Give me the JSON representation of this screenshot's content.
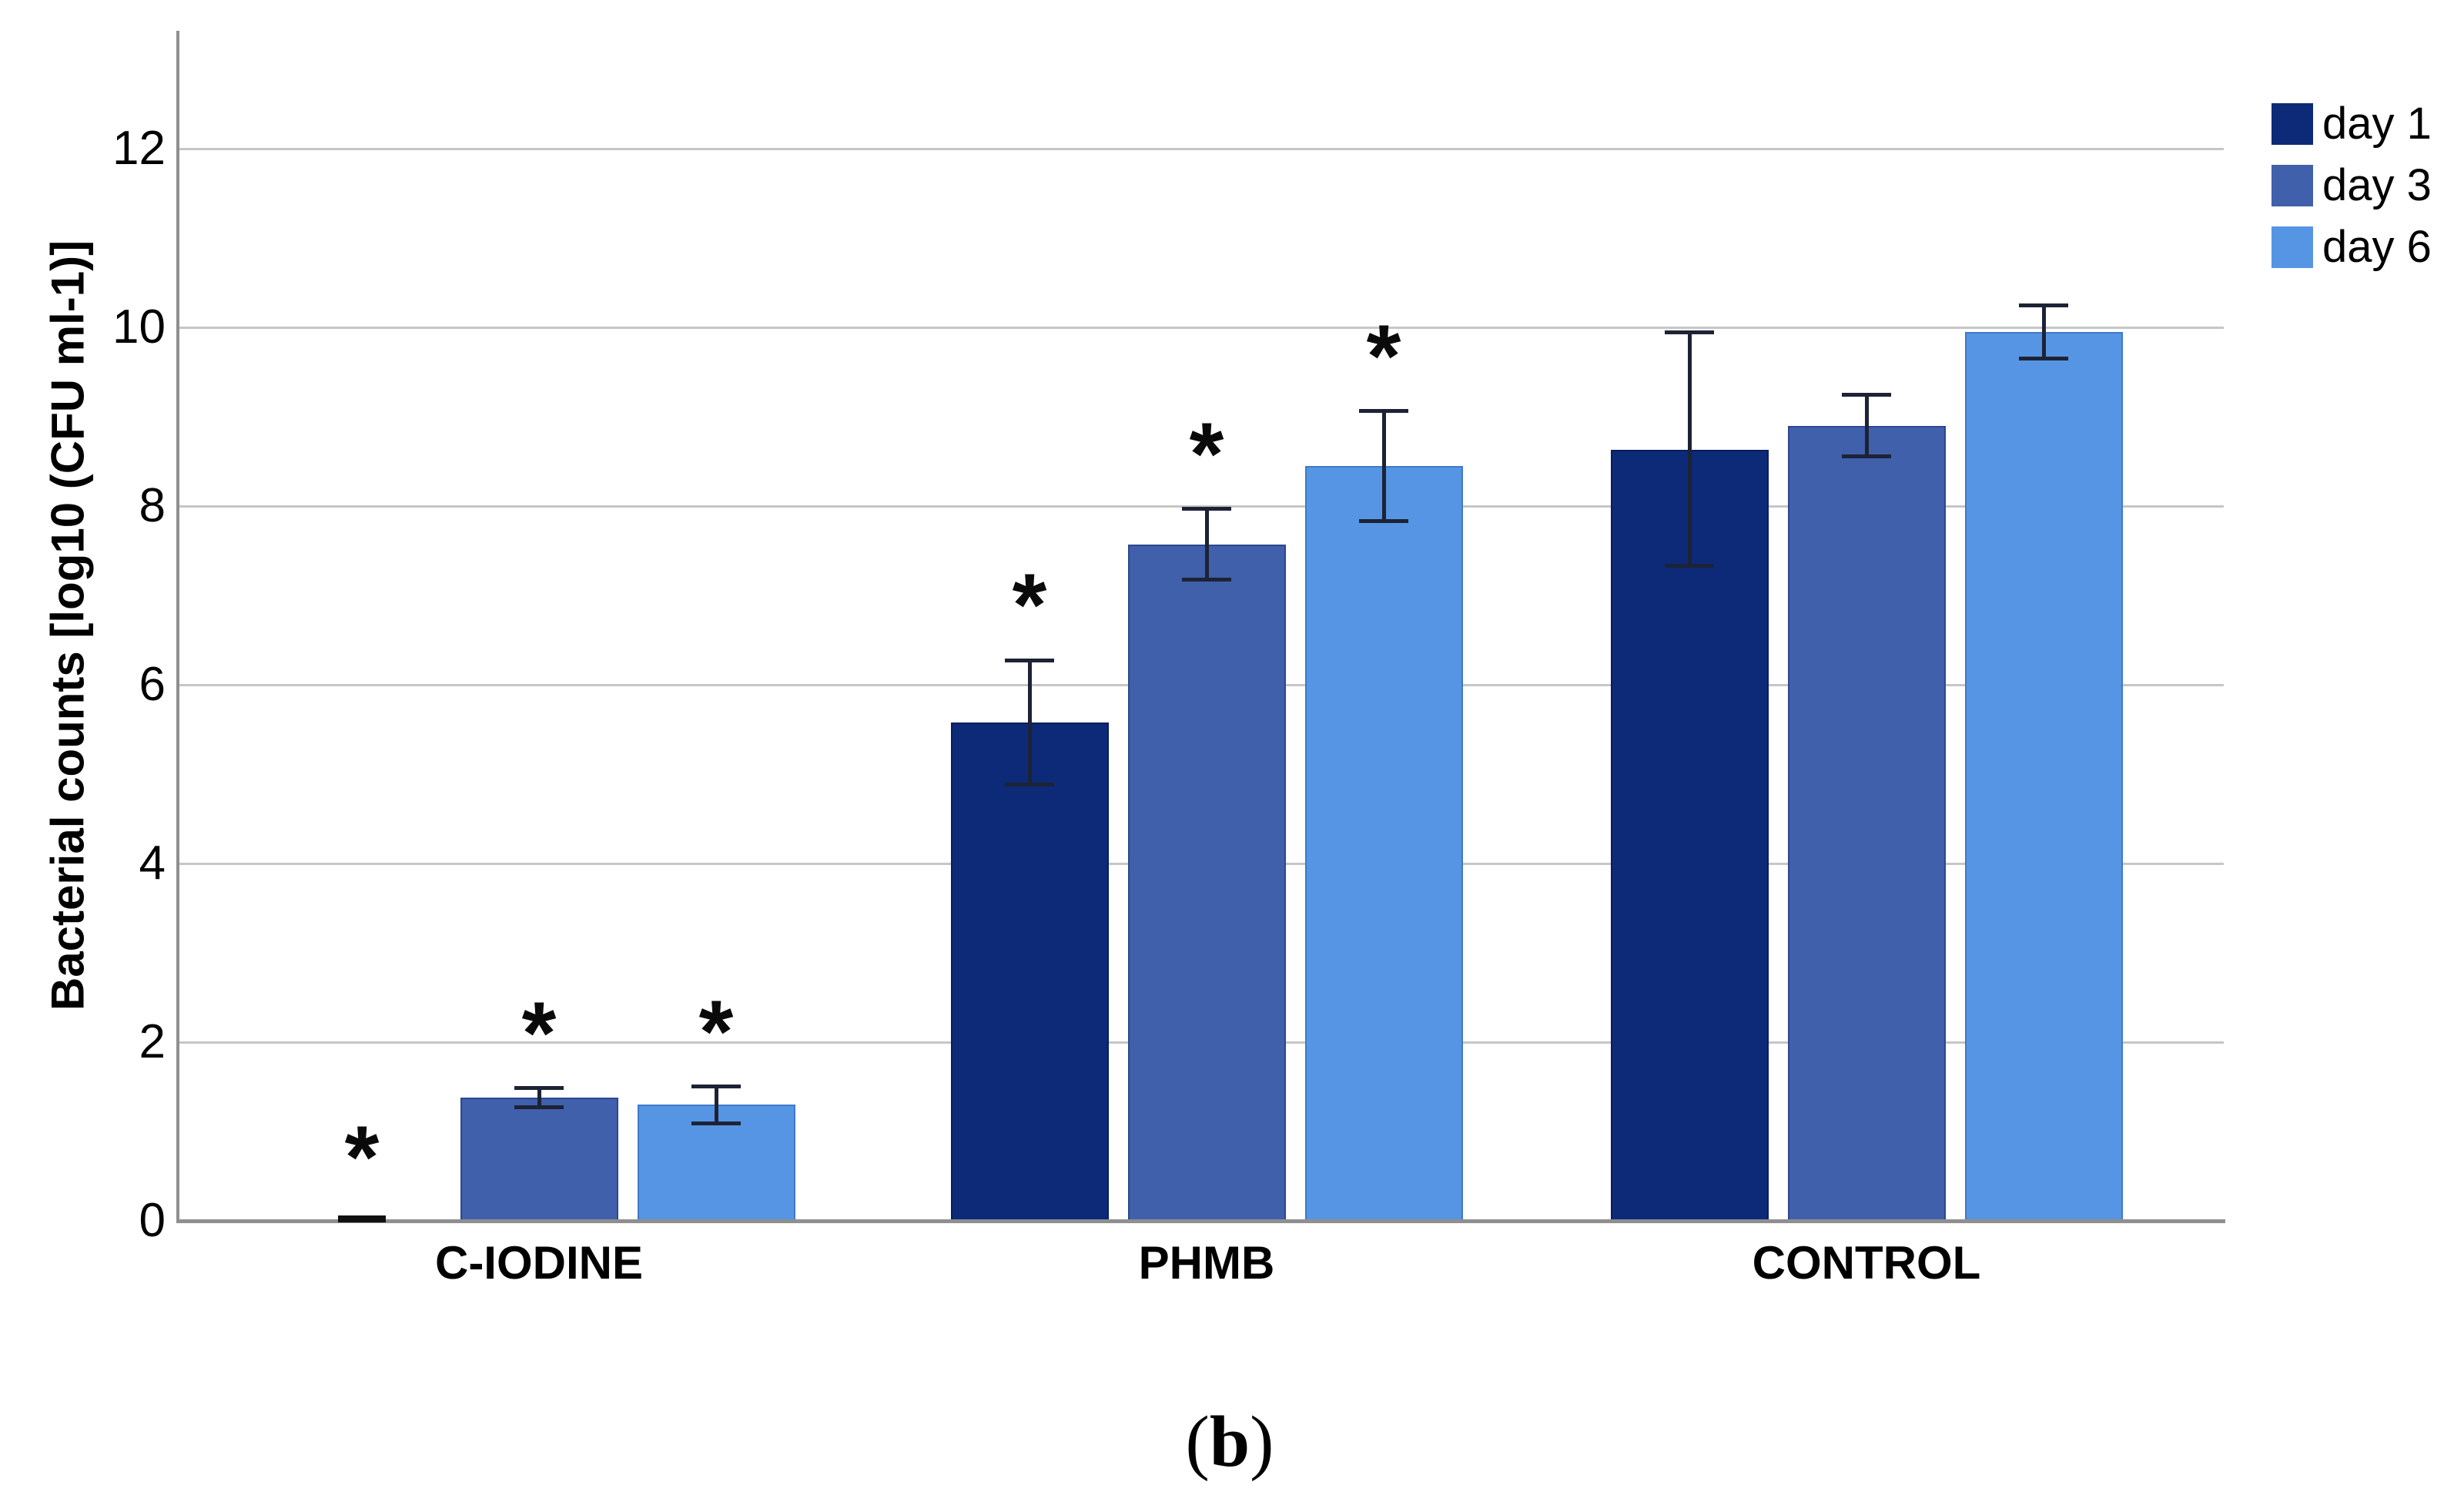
{
  "figure": {
    "caption": {
      "open": "(",
      "letter": "b",
      "close": ")"
    }
  },
  "chart_data": {
    "type": "bar",
    "title": "",
    "ylabel": "Bacterial counts [log10 (CFU ml-1)]",
    "xlabel": "",
    "ylim": [
      0,
      13.3
    ],
    "yticks": [
      0,
      2,
      4,
      6,
      8,
      10,
      12
    ],
    "grid": "horizontal",
    "legend_position": "top-right",
    "categories": [
      "C-IODINE",
      "PHMB",
      "CONTROL"
    ],
    "series": [
      {
        "name": "day 1",
        "color": "#0c2a78",
        "edge": "#081e59",
        "values": [
          0,
          5.58,
          8.63
        ],
        "err_low": [
          null,
          4.88,
          7.33
        ],
        "err_high": [
          null,
          6.28,
          9.95
        ],
        "significant": [
          true,
          true,
          false
        ]
      },
      {
        "name": "day 3",
        "color": "#4060ab",
        "edge": "#2d4791",
        "values": [
          1.38,
          7.57,
          8.9
        ],
        "err_low": [
          1.27,
          7.17,
          8.55
        ],
        "err_high": [
          1.49,
          7.97,
          9.25
        ],
        "significant": [
          true,
          true,
          false
        ]
      },
      {
        "name": "day 6",
        "color": "#5695e3",
        "edge": "#3e7ac9",
        "values": [
          1.3,
          8.45,
          9.95
        ],
        "err_low": [
          1.09,
          7.83,
          9.65
        ],
        "err_high": [
          1.51,
          9.07,
          10.25
        ],
        "significant": [
          true,
          true,
          false
        ]
      }
    ],
    "significance_symbol": "*",
    "error_bar_color": "#1d2335",
    "axis_color": "#8f8f8f",
    "grid_color": "#c6c6c6",
    "text_color": "#000000"
  }
}
